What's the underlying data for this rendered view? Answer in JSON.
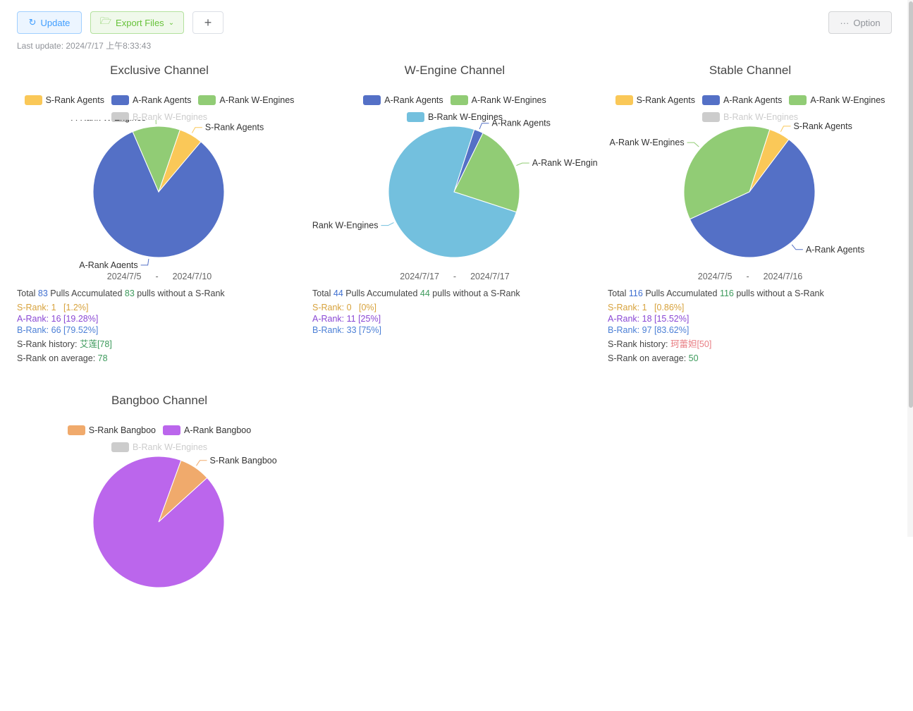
{
  "toolbar": {
    "update": "Update",
    "export": "Export Files",
    "plus": "+",
    "option": "Option",
    "update_icon": "refresh-icon",
    "export_icon": "folder-open-icon",
    "option_icon": "ellipsis-icon"
  },
  "last_update": "Last update: 2024/7/17 上午8:33:43",
  "colors": {
    "s_agents": "#fac858",
    "a_agents": "#5470c6",
    "a_wengines": "#91cc75",
    "b_wengines": "#73c0de",
    "s_bangboo": "#f0aa6c",
    "a_bangboo": "#bb66ec",
    "disabled": "#cccccc"
  },
  "channels": [
    {
      "title": "Exclusive Channel",
      "legend": [
        [
          {
            "label": "S-Rank Agents",
            "key": "s_agents",
            "on": true
          },
          {
            "label": "A-Rank Agents",
            "key": "a_agents",
            "on": true
          },
          {
            "label": "A-Rank W-Engines",
            "key": "a_wengines",
            "on": true
          }
        ],
        [
          {
            "label": "B-Rank W-Engines",
            "key": "b_wengines",
            "on": false
          }
        ]
      ],
      "chart_data": {
        "type": "pie",
        "slices": [
          {
            "name": "S-Rank Agents",
            "value": 1,
            "key": "s_agents"
          },
          {
            "name": "A-Rank Agents",
            "value": 14,
            "key": "a_agents"
          },
          {
            "name": "A-Rank W-Engines",
            "value": 2,
            "key": "a_wengines"
          }
        ],
        "start_deg": 19
      },
      "date_from": "2024/7/5",
      "date_sep": "-",
      "date_to": "2024/7/10",
      "total_pre": "Total",
      "total": "83",
      "total_mid": "Pulls Accumulated",
      "since": "83",
      "total_post": "pulls without a S-Rank",
      "s_rank": "S-Rank: 1   [1.2%]",
      "a_rank": "A-Rank: 16 [19.28%]",
      "b_rank": "B-Rank: 66 [79.52%]",
      "history_label": "S-Rank history:",
      "history": "艾莲[78]",
      "history_color": "n-green",
      "avg_label": "S-Rank on average:",
      "avg": "78"
    },
    {
      "title": "W-Engine Channel",
      "legend": [
        [
          {
            "label": "A-Rank Agents",
            "key": "a_agents",
            "on": true
          },
          {
            "label": "A-Rank W-Engines",
            "key": "a_wengines",
            "on": true
          }
        ],
        [
          {
            "label": "B-Rank W-Engines",
            "key": "b_wengines",
            "on": true
          }
        ]
      ],
      "chart_data": {
        "type": "pie",
        "slices": [
          {
            "name": "A-Rank Agents",
            "value": 1,
            "key": "a_agents"
          },
          {
            "name": "A-Rank W-Engines",
            "value": 10,
            "key": "a_wengines"
          },
          {
            "name": "B-Rank W-Engines",
            "value": 33,
            "key": "b_wengines"
          }
        ],
        "start_deg": 18
      },
      "date_from": "2024/7/17",
      "date_sep": "-",
      "date_to": "2024/7/17",
      "total_pre": "Total",
      "total": "44",
      "total_mid": "Pulls Accumulated",
      "since": "44",
      "total_post": "pulls without a S-Rank",
      "s_rank": "S-Rank: 0   [0%]",
      "a_rank": "A-Rank: 11 [25%]",
      "b_rank": "B-Rank: 33 [75%]"
    },
    {
      "title": "Stable Channel",
      "legend": [
        [
          {
            "label": "S-Rank Agents",
            "key": "s_agents",
            "on": true
          },
          {
            "label": "A-Rank Agents",
            "key": "a_agents",
            "on": true
          },
          {
            "label": "A-Rank W-Engines",
            "key": "a_wengines",
            "on": true
          }
        ],
        [
          {
            "label": "B-Rank W-Engines",
            "key": "b_wengines",
            "on": false
          }
        ]
      ],
      "chart_data": {
        "type": "pie",
        "slices": [
          {
            "name": "S-Rank Agents",
            "value": 1,
            "key": "s_agents"
          },
          {
            "name": "A-Rank Agents",
            "value": 11,
            "key": "a_agents"
          },
          {
            "name": "A-Rank W-Engines",
            "value": 7,
            "key": "a_wengines"
          }
        ],
        "start_deg": 18
      },
      "date_from": "2024/7/5",
      "date_sep": "-",
      "date_to": "2024/7/16",
      "total_pre": "Total",
      "total": "116",
      "total_mid": "Pulls Accumulated",
      "since": "116",
      "total_post": "pulls without a S-Rank",
      "s_rank": "S-Rank: 1   [0.86%]",
      "a_rank": "A-Rank: 18 [15.52%]",
      "b_rank": "B-Rank: 97 [83.62%]",
      "history_label": "S-Rank history:",
      "history": "珂蕾妲[50]",
      "history_color": "c-red",
      "avg_label": "S-Rank on average:",
      "avg": "50"
    },
    {
      "title": "Bangboo Channel",
      "legend": [
        [
          {
            "label": "S-Rank Bangboo",
            "key": "s_bangboo",
            "on": true
          },
          {
            "label": "A-Rank Bangboo",
            "key": "a_bangboo",
            "on": true
          }
        ],
        [
          {
            "label": "B-Rank W-Engines",
            "key": "b_wengines",
            "on": false
          }
        ]
      ],
      "chart_data": {
        "type": "pie",
        "slices": [
          {
            "name": "S-Rank Bangboo",
            "value": 1,
            "key": "s_bangboo"
          },
          {
            "name": "A-Rank Bangboo",
            "value": 12,
            "key": "a_bangboo",
            "nolabel": true
          }
        ],
        "start_deg": 20
      }
    }
  ]
}
